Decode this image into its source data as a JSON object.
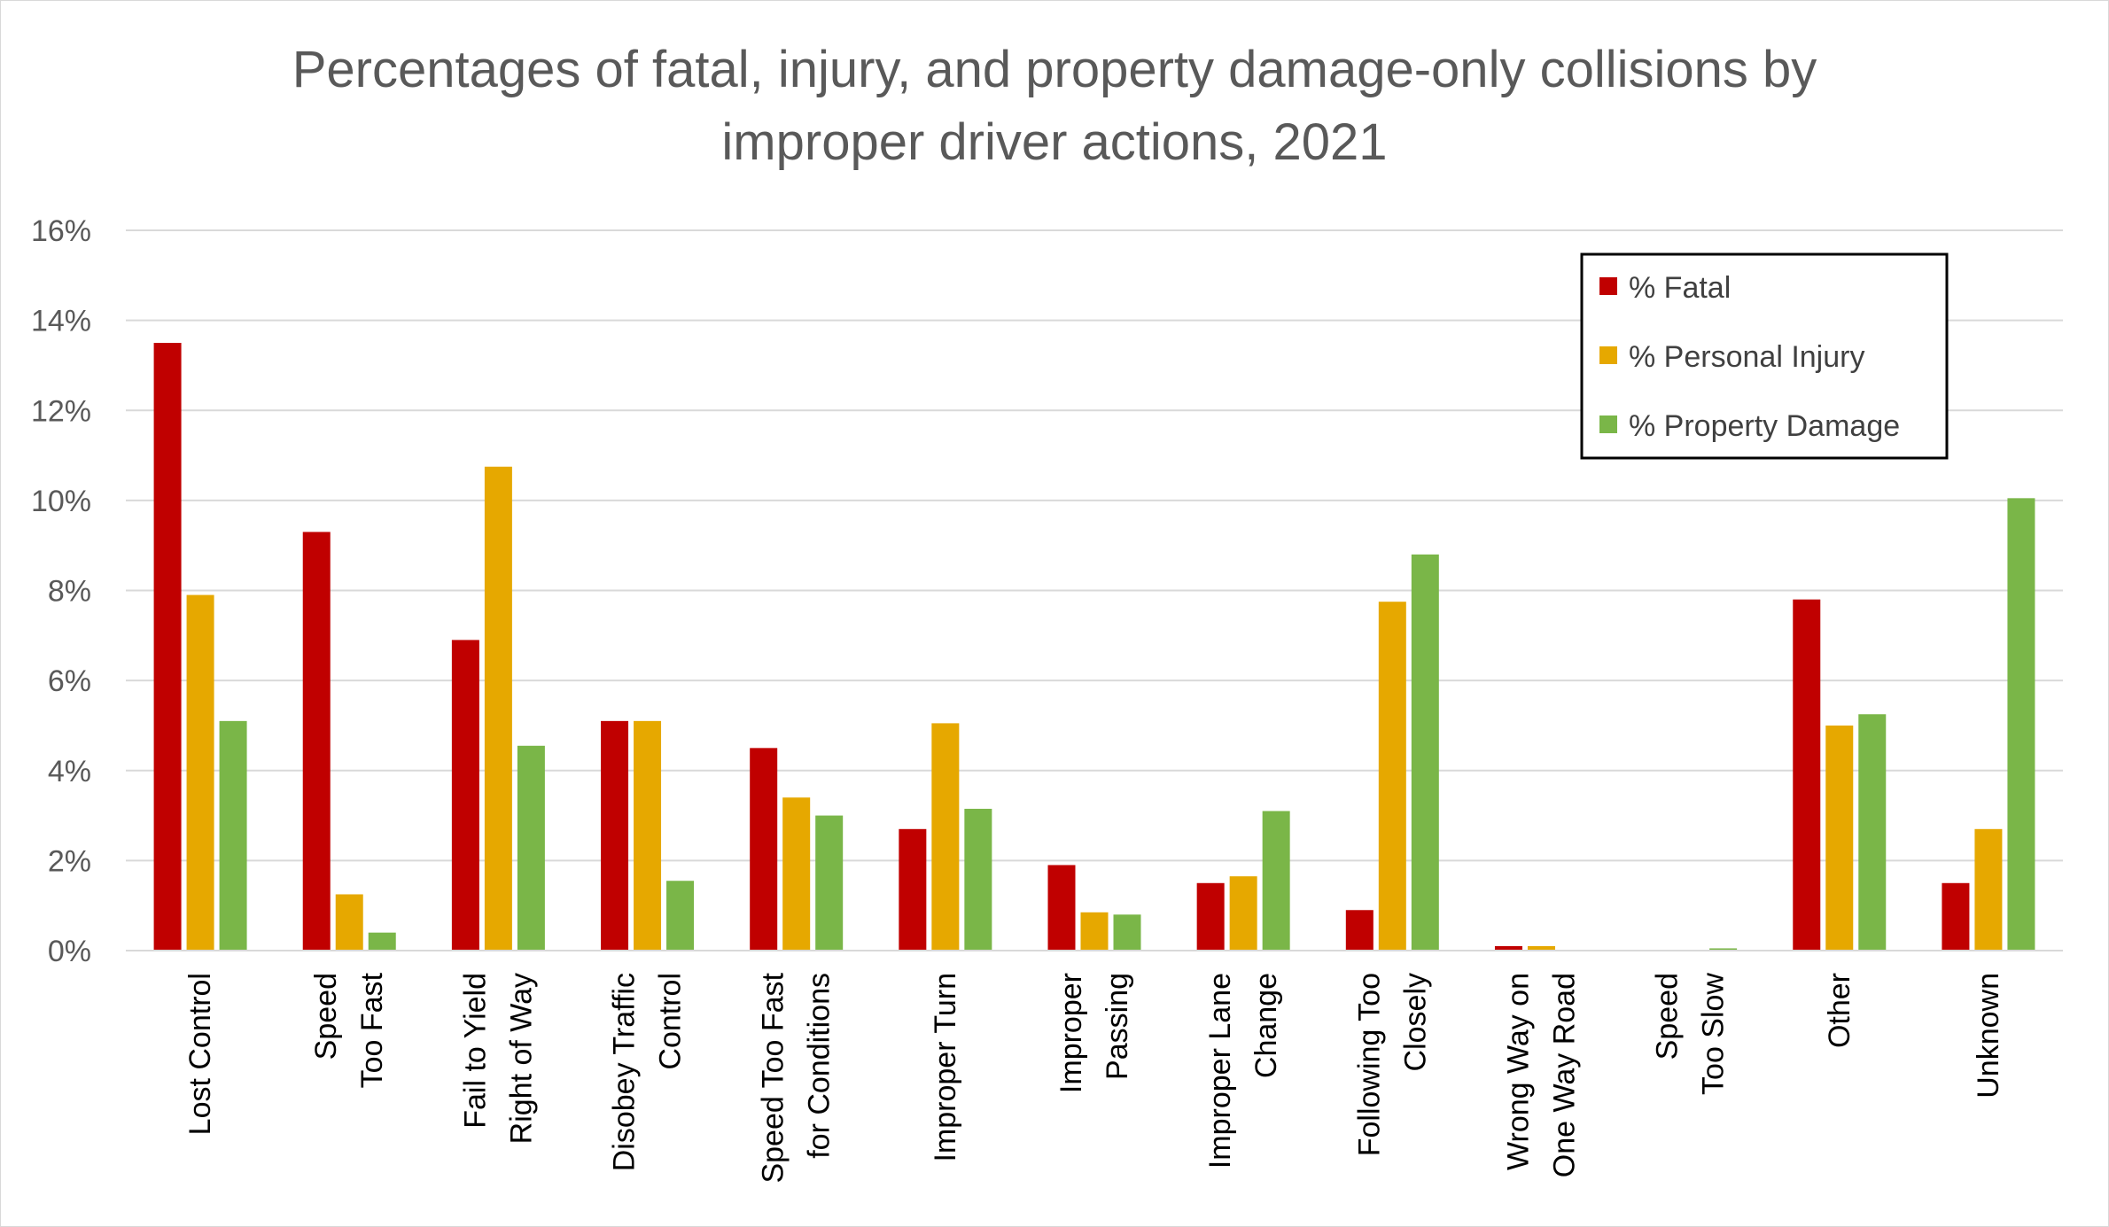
{
  "chart_data": {
    "type": "bar",
    "title_lines": [
      "Percentages of fatal, injury, and property damage-only collisions by",
      "improper driver actions, 2021"
    ],
    "categories": [
      [
        "Lost Control"
      ],
      [
        "Speed",
        "Too Fast"
      ],
      [
        "Fail to Yield",
        "Right of Way"
      ],
      [
        "Disobey Traffic",
        "Control"
      ],
      [
        "Speed Too Fast",
        "for Conditions"
      ],
      [
        "Improper Turn"
      ],
      [
        "Improper",
        "Passing"
      ],
      [
        "Improper Lane",
        "Change"
      ],
      [
        "Following Too",
        "Closely"
      ],
      [
        "Wrong Way on",
        "One Way Road"
      ],
      [
        "Speed",
        "Too Slow"
      ],
      [
        "Other"
      ],
      [
        "Unknown"
      ]
    ],
    "series": [
      {
        "name": "% Fatal",
        "color": "#c00000",
        "values": [
          13.5,
          9.3,
          6.9,
          5.1,
          4.5,
          2.7,
          1.9,
          1.5,
          0.9,
          0.1,
          0.0,
          7.8,
          1.5
        ]
      },
      {
        "name": "% Personal Injury",
        "color": "#e6a800",
        "values": [
          7.9,
          1.25,
          10.75,
          5.1,
          3.4,
          5.05,
          0.85,
          1.65,
          7.75,
          0.1,
          0.0,
          5.0,
          2.7
        ]
      },
      {
        "name": "% Property Damage",
        "color": "#7ab648",
        "values": [
          5.1,
          0.4,
          4.55,
          1.55,
          3.0,
          3.15,
          0.8,
          3.1,
          8.8,
          0.0,
          0.05,
          5.25,
          10.05
        ]
      }
    ],
    "y_ticks": [
      "0%",
      "2%",
      "4%",
      "6%",
      "8%",
      "10%",
      "12%",
      "14%",
      "16%"
    ],
    "ylim": [
      0,
      16
    ],
    "grid": true,
    "legend_position": "top-right"
  }
}
